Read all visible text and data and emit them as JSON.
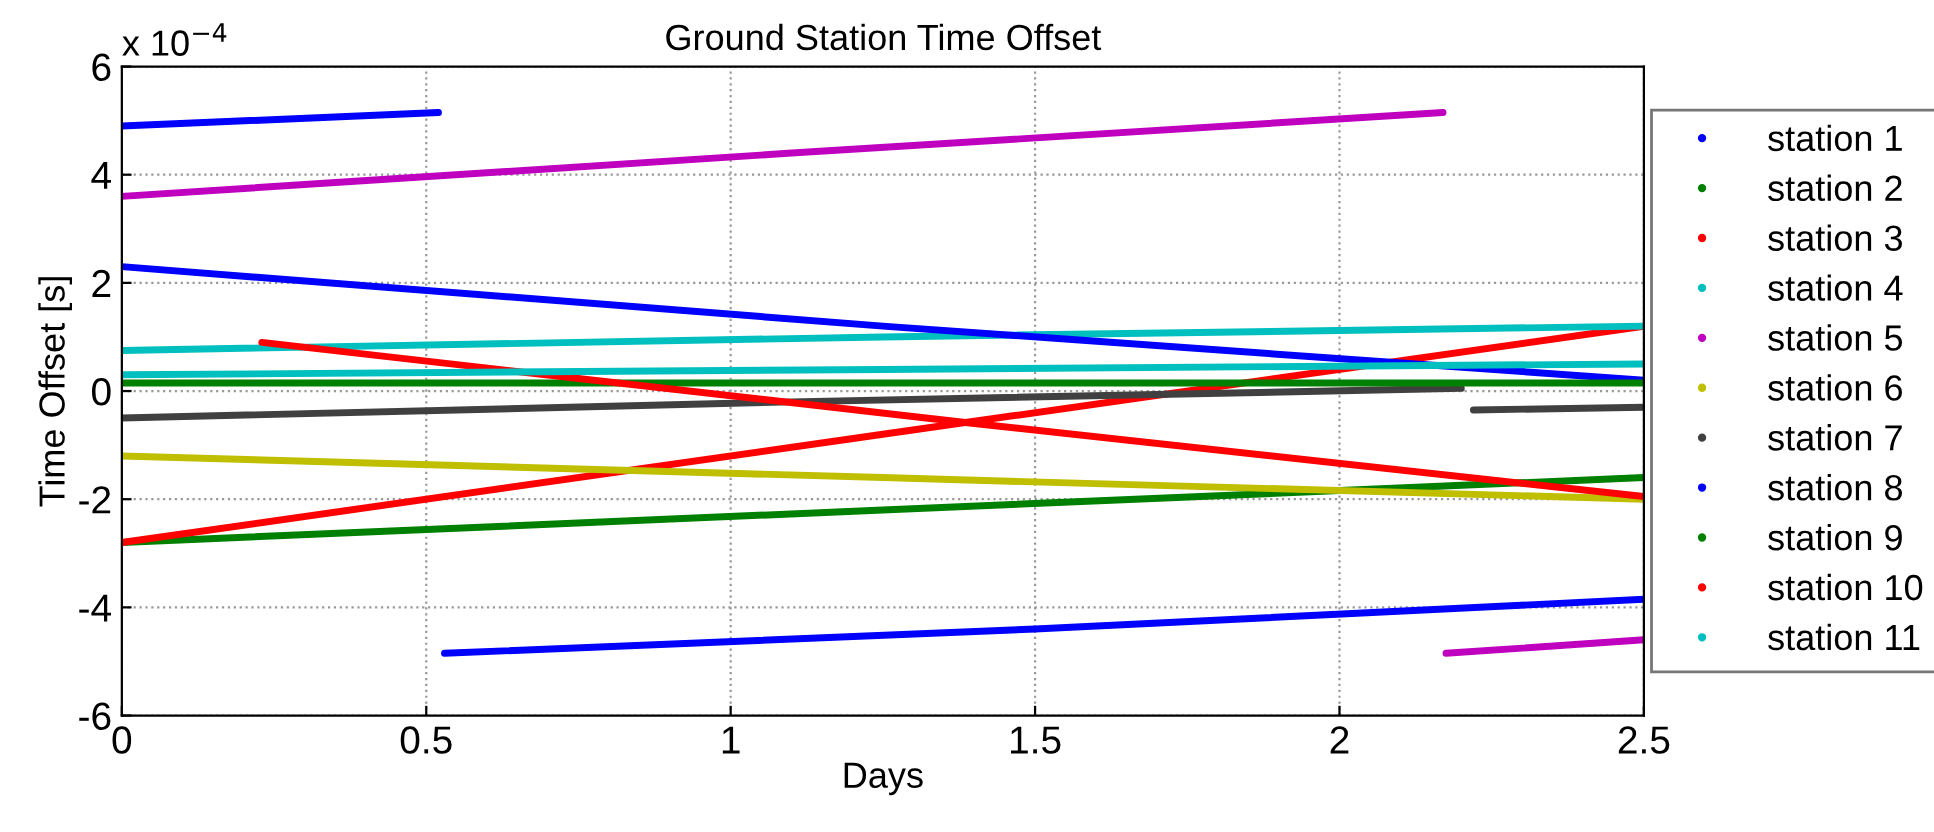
{
  "chart_data": {
    "type": "line",
    "title": "Ground Station Time Offset",
    "xlabel": "Days",
    "ylabel": "Time Offset [s]",
    "annotations": [
      "x 10$^{−4}$"
    ],
    "xlim": [
      0,
      2.5
    ],
    "xticks": [
      0,
      0.5,
      1,
      1.5,
      2,
      2.5
    ],
    "ylim": [
      -6,
      6
    ],
    "yticks": [
      -6,
      -4,
      -2,
      0,
      2,
      4,
      6
    ],
    "grid": true,
    "legend": "right",
    "line_style": "solid",
    "marker": "none",
    "series": [
      {
        "name": "station 1",
        "color": "#0000ff",
        "x": [
          0,
          0.52,
          0.525,
          0.53,
          1.5,
          2.5
        ],
        "values": [
          4.9,
          5.15,
          null,
          -4.85,
          -4.4,
          -3.85
        ]
      },
      {
        "name": "station 2",
        "color": "#008000",
        "x": [
          0,
          1.25,
          2.5
        ],
        "values": [
          -2.8,
          -2.2,
          -1.6
        ]
      },
      {
        "name": "station 3",
        "color": "#ff0000",
        "x": [
          0,
          1.25,
          2.5
        ],
        "values": [
          -2.8,
          -0.8,
          1.2
        ]
      },
      {
        "name": "station 4",
        "color": "#00bfbf",
        "x": [
          0,
          1.25,
          2.5
        ],
        "values": [
          0.75,
          1.0,
          1.2
        ]
      },
      {
        "name": "station 5",
        "color": "#bf00bf",
        "x": [
          0,
          1.1,
          2.17,
          2.172,
          2.175,
          2.5
        ],
        "values": [
          3.6,
          4.4,
          5.15,
          null,
          -4.85,
          -4.6
        ]
      },
      {
        "name": "station 6",
        "color": "#bfbf00",
        "x": [
          0,
          1.25,
          2.5
        ],
        "values": [
          -1.2,
          -1.6,
          -2.0
        ]
      },
      {
        "name": "station 7",
        "color": "#404040",
        "x": [
          0,
          1.1,
          2.2,
          2.21,
          2.22,
          2.5
        ],
        "values": [
          -0.5,
          -0.2,
          0.05,
          null,
          -0.35,
          -0.3
        ]
      },
      {
        "name": "station 8",
        "color": "#0000ff",
        "x": [
          0,
          1.25,
          2.5
        ],
        "values": [
          2.3,
          1.2,
          0.2
        ]
      },
      {
        "name": "station 9",
        "color": "#008000",
        "x": [
          0,
          1.25,
          2.5
        ],
        "values": [
          0.15,
          0.15,
          0.15
        ]
      },
      {
        "name": "station 10",
        "color": "#ff0000",
        "x": [
          0.23,
          1.4,
          2.5
        ],
        "values": [
          0.9,
          -0.6,
          -1.95
        ]
      },
      {
        "name": "station 11",
        "color": "#00bfbf",
        "x": [
          0,
          1.25,
          2.5
        ],
        "values": [
          0.3,
          0.4,
          0.5
        ]
      }
    ]
  }
}
